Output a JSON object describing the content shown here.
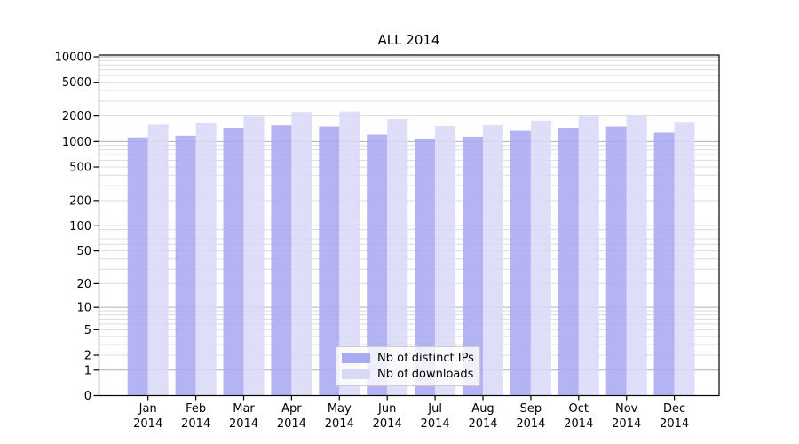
{
  "chart_data": {
    "type": "bar",
    "title": "ALL 2014",
    "categories": [
      "Jan",
      "Feb",
      "Mar",
      "Apr",
      "May",
      "Jun",
      "Jul",
      "Aug",
      "Sep",
      "Oct",
      "Nov",
      "Dec"
    ],
    "year_label": "2014",
    "series": [
      {
        "name": "Nb of distinct IPs",
        "color": "#aaaaf2",
        "values": [
          1120,
          1170,
          1450,
          1550,
          1500,
          1210,
          1080,
          1140,
          1360,
          1450,
          1500,
          1270
        ]
      },
      {
        "name": "Nb of downloads",
        "color": "#d9d9f8",
        "values": [
          1580,
          1670,
          1970,
          2230,
          2260,
          1850,
          1520,
          1560,
          1770,
          1975,
          2060,
          1710
        ]
      }
    ],
    "y_scale": "log1p",
    "y_ticks": [
      0,
      1,
      2,
      5,
      10,
      20,
      50,
      100,
      200,
      500,
      1000,
      2000,
      5000,
      10000
    ],
    "ylim": [
      0,
      10500
    ],
    "xlabel": "",
    "ylabel": "",
    "grid": {
      "major_at": [
        1,
        10,
        100,
        1000,
        10000
      ],
      "minor": "2-9 multiples per decade",
      "major_color": "#b0b0b0",
      "minor_color": "#dcdcdc"
    },
    "legend_position": "lower center"
  },
  "style": {
    "background": "#ffffff",
    "axis_color": "#000000",
    "bar_dark": "#aaaaf2",
    "bar_light": "#d9d9f8"
  }
}
